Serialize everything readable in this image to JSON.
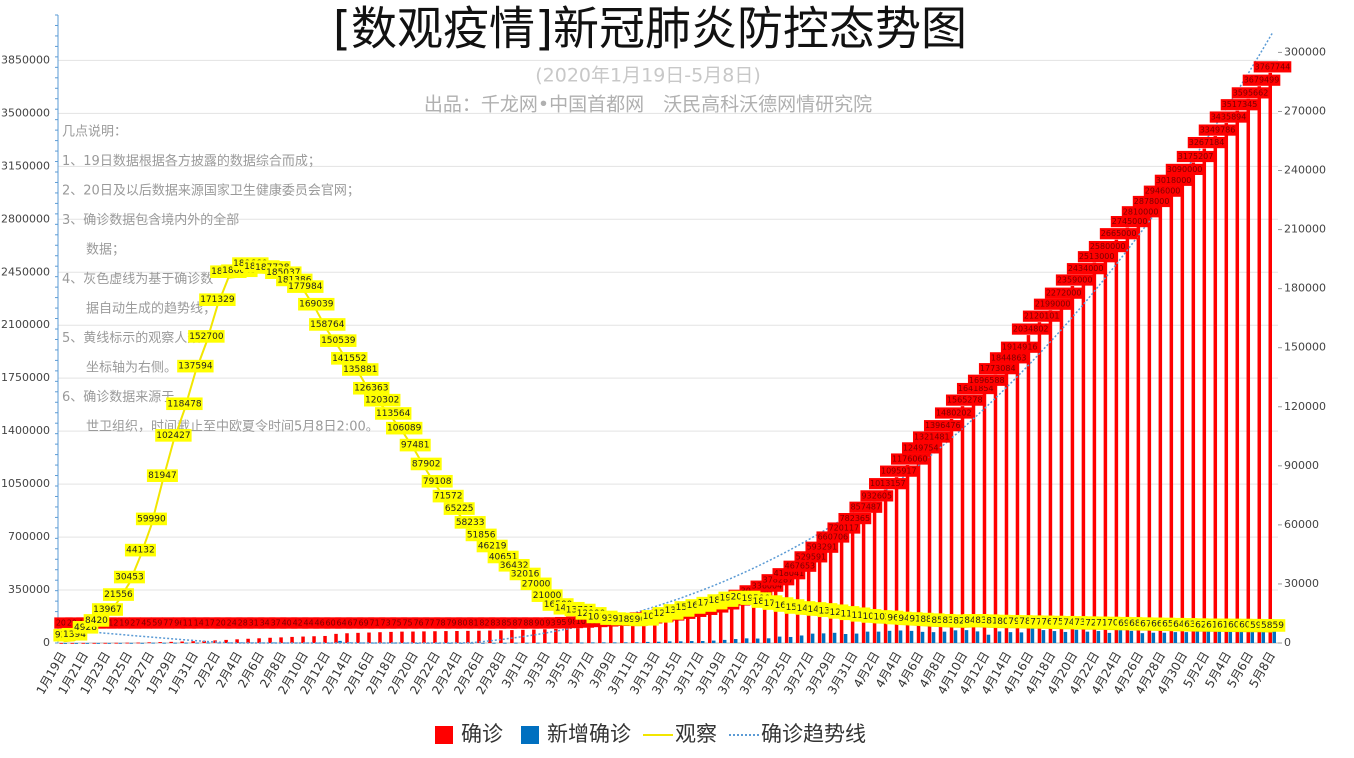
{
  "chart_data": {
    "type": "combo",
    "title": "[数观疫情]新冠肺炎防控态势图",
    "subtitle": "(2020年1月19日-5月8日)",
    "source": "出品：千龙网•中国首都网　沃民高科沃德网情研究院",
    "notes": [
      "几点说明：",
      "1、19日数据根据各方披露的数据综合而成；",
      "2、20日及以后数据来源国家卫生健康委员会官网；",
      "3、确诊数据包含境内外的全部",
      "数据；",
      "4、灰色虚线为基于确诊数",
      "据自动生成的趋势线；",
      "5、黄线标示的观察人数",
      "坐标轴为右侧。",
      "6、确诊数据来源于",
      "世卫组织，时间截止至中欧夏令时间5月8日2:00。"
    ],
    "categories": [
      "1月19日",
      null,
      "1月21日",
      null,
      "1月23日",
      null,
      "1月25日",
      null,
      "1月27日",
      null,
      "1月29日",
      null,
      "1月31日",
      null,
      "2月2日",
      null,
      "2月4日",
      null,
      "2月6日",
      null,
      "2月8日",
      null,
      "2月10日",
      null,
      "2月12日",
      null,
      "2月14日",
      null,
      "2月16日",
      null,
      "2月18日",
      null,
      "2月20日",
      null,
      "2月22日",
      null,
      "2月24日",
      null,
      "2月26日",
      null,
      "2月28日",
      null,
      "3月1日",
      null,
      "3月3日",
      null,
      "3月5日",
      null,
      "3月7日",
      null,
      "3月9日",
      null,
      "3月11日",
      null,
      "3月13日",
      null,
      "3月15日",
      null,
      "3月17日",
      null,
      "3月19日",
      null,
      "3月21日",
      null,
      "3月23日",
      null,
      "3月25日",
      null,
      "3月27日",
      null,
      "3月29日",
      null,
      "3月31日",
      null,
      "4月2日",
      null,
      "4月4日",
      null,
      "4月6日",
      null,
      "4月8日",
      null,
      "4月10日",
      null,
      "4月12日",
      null,
      "4月14日",
      null,
      "4月16日",
      null,
      "4月18日",
      null,
      "4月20日",
      null,
      "4月22日",
      null,
      "4月24日",
      null,
      "4月26日",
      null,
      "4月28日",
      null,
      "4月30日",
      null,
      "5月2日",
      null,
      "5月4日",
      null,
      "5月6日",
      null,
      "5月8日"
    ],
    "series": [
      {
        "name": "确诊",
        "kind": "bar",
        "color": "#ff0000",
        "data_labels": true,
        "values": [
          201,
          291,
          440,
          571,
          830,
          1287,
          1975,
          2744,
          4515,
          5974,
          7711,
          9692,
          11791,
          14380,
          17205,
          20438,
          24324,
          28018,
          31161,
          34546,
          37198,
          40171,
          42638,
          44653,
          46472,
          60363,
          64400,
          67100,
          69197,
          71329,
          73332,
          75184,
          75700,
          76769,
          77794,
          78811,
          79331,
          80239,
          81109,
          82294,
          83652,
          85403,
          87137,
          88948,
          90870,
          93090,
          95324,
          98192,
          102050,
          106099,
          109991,
          114381,
          118948,
          126214,
          134576,
          145483,
          156653,
          169511,
          182605,
          198412,
          218822,
          244933,
          275597,
          305036,
          336004,
          378287,
          418041,
          467653,
          529591,
          593291,
          660706,
          720117,
          782365,
          857487,
          932605,
          1013157,
          1095917,
          1176060,
          1249754,
          1321481,
          1396476,
          1480202,
          1565278,
          1641854,
          1696588,
          1773084,
          1844863,
          1914916,
          2034802,
          2120101,
          2199000,
          2272000,
          2359000,
          2434000,
          2513000,
          2580000,
          2665000,
          2745000,
          2810000,
          2878000,
          2946000,
          3018000,
          3090000,
          3175207,
          3267184,
          3349786,
          3435894,
          3517345,
          3595662,
          3679499,
          3767744
        ]
      },
      {
        "name": "新增确诊",
        "kind": "bar",
        "color": "#0070c0",
        "values": [
          0,
          77,
          149,
          131,
          259,
          444,
          688,
          769,
          1771,
          1459,
          1737,
          1981,
          2099,
          2589,
          2825,
          3235,
          3887,
          3694,
          3143,
          3385,
          2652,
          2973,
          2467,
          2015,
          1819,
          13891,
          4037,
          2700,
          2097,
          2132,
          2003,
          1852,
          516,
          1069,
          1025,
          1017,
          520,
          908,
          870,
          1185,
          1358,
          1751,
          1734,
          1811,
          1922,
          2220,
          2234,
          2868,
          3858,
          4049,
          3892,
          4390,
          4567,
          7266,
          8362,
          10907,
          11170,
          12858,
          13094,
          15807,
          20410,
          26111,
          30664,
          29439,
          30968,
          42283,
          39754,
          49612,
          61938,
          63700,
          67415,
          59411,
          62248,
          75122,
          75118,
          80552,
          82760,
          80143,
          73694,
          71727,
          74995,
          83726,
          85076,
          76576,
          54734,
          76496,
          71779,
          70053,
          119886,
          85299,
          78899,
          73000,
          87000,
          75000,
          79000,
          67000,
          85000,
          80000,
          65000,
          68000,
          68000,
          72000,
          72000,
          85207,
          91977,
          82602,
          86108,
          81451,
          78317,
          83837,
          88245
        ]
      },
      {
        "name": "观察",
        "kind": "line",
        "axis": "y2",
        "color": "#ffff00",
        "data_labels": true,
        "values": [
          922,
          1394,
          4928,
          8420,
          13967,
          21556,
          30453,
          44132,
          59990,
          81947,
          102427,
          118478,
          137594,
          152700,
          171329,
          185555,
          186045,
          189660,
          188183,
          187728,
          185037,
          181386,
          177984,
          169039,
          158764,
          150539,
          141552,
          135881,
          126363,
          120302,
          113564,
          106089,
          97481,
          87902,
          79108,
          71572,
          65225,
          58233,
          51856,
          46219,
          40651,
          36432,
          32016,
          27000,
          21000,
          16500,
          14607,
          13701,
          12000,
          10189,
          9351,
          9143,
          8989,
          9000,
          10500,
          12000,
          13500,
          15000,
          16000,
          17198,
          18500,
          19853,
          20314,
          19500,
          18000,
          17000,
          16000,
          15000,
          14500,
          14000,
          13334,
          12500,
          11800,
          11000,
          10435,
          10200,
          9655,
          9400,
          9100,
          8800,
          8500,
          8309,
          8200,
          8484,
          8300,
          8100,
          8000,
          7900,
          7800,
          7700,
          7600,
          7500,
          7400,
          7300,
          7200,
          7100,
          7000,
          6900,
          6800,
          6700,
          6600,
          6500,
          6400,
          6300,
          6200,
          6150,
          6100,
          6050,
          6000,
          5950,
          5859
        ]
      },
      {
        "name": "确诊趋势线",
        "kind": "trend",
        "color": "#5b9bd5"
      }
    ],
    "ylim": [
      0,
      4150000
    ],
    "yticks": [
      0,
      350000,
      700000,
      1050000,
      1400000,
      1750000,
      2100000,
      2450000,
      2800000,
      3150000,
      3500000,
      3850000
    ],
    "y2lim": [
      0,
      319000
    ],
    "y2ticks": [
      0,
      30000,
      60000,
      90000,
      120000,
      150000,
      180000,
      210000,
      240000,
      270000,
      300000
    ],
    "grid": true
  }
}
